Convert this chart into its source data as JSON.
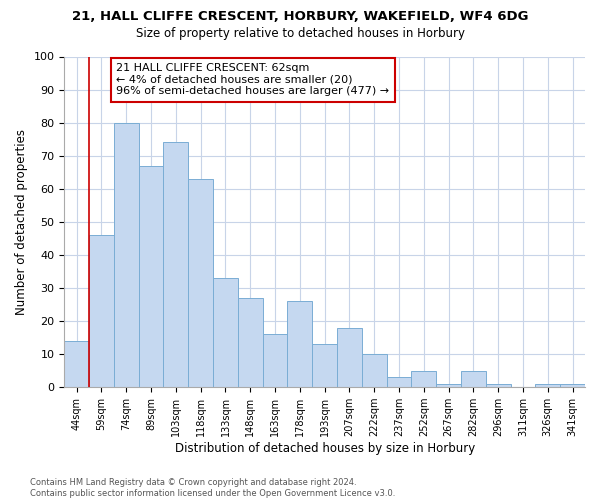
{
  "title1": "21, HALL CLIFFE CRESCENT, HORBURY, WAKEFIELD, WF4 6DG",
  "title2": "Size of property relative to detached houses in Horbury",
  "xlabel": "Distribution of detached houses by size in Horbury",
  "ylabel": "Number of detached properties",
  "footnote": "Contains HM Land Registry data © Crown copyright and database right 2024.\nContains public sector information licensed under the Open Government Licence v3.0.",
  "categories": [
    "44sqm",
    "59sqm",
    "74sqm",
    "89sqm",
    "103sqm",
    "118sqm",
    "133sqm",
    "148sqm",
    "163sqm",
    "178sqm",
    "193sqm",
    "207sqm",
    "222sqm",
    "237sqm",
    "252sqm",
    "267sqm",
    "282sqm",
    "296sqm",
    "311sqm",
    "326sqm",
    "341sqm"
  ],
  "values": [
    14,
    46,
    80,
    67,
    74,
    63,
    33,
    27,
    16,
    26,
    13,
    18,
    10,
    3,
    5,
    1,
    5,
    1,
    0,
    1,
    1
  ],
  "bar_color": "#c5d8f0",
  "bar_edge_color": "#7aadd4",
  "vline_x": 0.5,
  "vline_color": "#cc0000",
  "annotation_text": "21 HALL CLIFFE CRESCENT: 62sqm\n← 4% of detached houses are smaller (20)\n96% of semi-detached houses are larger (477) →",
  "annotation_box_color": "#ffffff",
  "annotation_box_edge": "#cc0000",
  "ylim": [
    0,
    100
  ],
  "yticks": [
    0,
    10,
    20,
    30,
    40,
    50,
    60,
    70,
    80,
    90,
    100
  ],
  "grid_color": "#c8d4e8",
  "background_color": "#ffffff"
}
